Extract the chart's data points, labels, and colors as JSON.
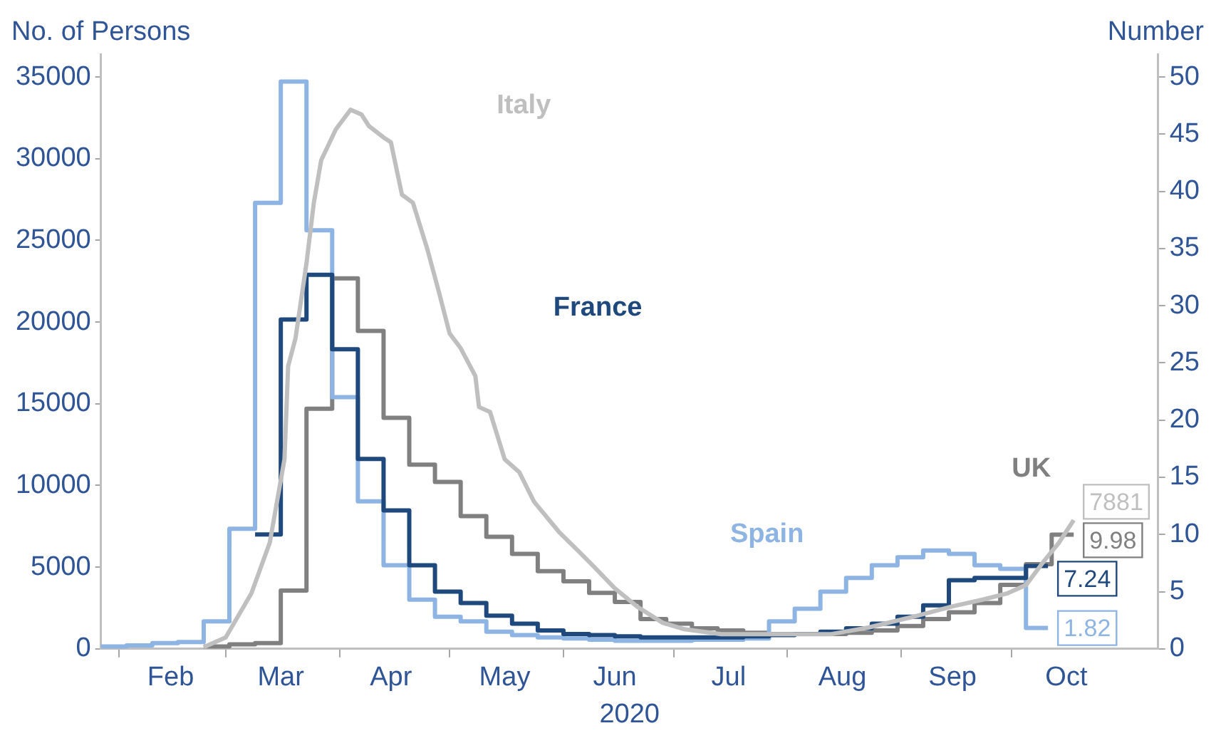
{
  "chart_data": {
    "type": "line",
    "xlabel": "2020",
    "ylabel": "No. of Persons",
    "y2label": "Number",
    "xlim": [
      "2020-01-27",
      "2020-11-10"
    ],
    "xticks": [
      {
        "value": "2020-02-01",
        "label": null
      },
      {
        "value": "2020-02-15",
        "label": "Feb"
      },
      {
        "value": "2020-03-01",
        "label": null
      },
      {
        "value": "2020-03-16",
        "label": "Mar"
      },
      {
        "value": "2020-04-01",
        "label": null
      },
      {
        "value": "2020-04-15",
        "label": "Apr"
      },
      {
        "value": "2020-05-01",
        "label": null
      },
      {
        "value": "2020-05-16",
        "label": "May"
      },
      {
        "value": "2020-06-01",
        "label": null
      },
      {
        "value": "2020-06-15",
        "label": "Jun"
      },
      {
        "value": "2020-07-01",
        "label": null
      },
      {
        "value": "2020-07-16",
        "label": "Jul"
      },
      {
        "value": "2020-08-01",
        "label": null
      },
      {
        "value": "2020-08-16",
        "label": "Aug"
      },
      {
        "value": "2020-09-01",
        "label": null
      },
      {
        "value": "2020-09-15",
        "label": "Sep"
      },
      {
        "value": "2020-10-01",
        "label": null
      },
      {
        "value": "2020-10-16",
        "label": "Oct"
      }
    ],
    "ylim": [
      0,
      36400
    ],
    "yticks": [
      0,
      5000,
      10000,
      15000,
      20000,
      25000,
      30000,
      35000
    ],
    "y2lim": [
      0,
      52
    ],
    "y2ticks": [
      0,
      5,
      10,
      15,
      20,
      25,
      30,
      35,
      40,
      45,
      50
    ],
    "grid": false,
    "legend": false,
    "marker": "none",
    "series": [
      {
        "name": "Italy",
        "type": "line",
        "color": "#bfbfbf",
        "x": [
          "2020-02-24",
          "2020-03-01",
          "2020-03-08",
          "2020-03-13",
          "2020-03-17",
          "2020-03-18",
          "2020-03-20",
          "2020-03-23",
          "2020-03-25",
          "2020-03-27",
          "2020-03-31",
          "2020-04-04",
          "2020-04-07",
          "2020-04-09",
          "2020-04-13",
          "2020-04-15",
          "2020-04-18",
          "2020-04-21",
          "2020-04-25",
          "2020-04-28",
          "2020-05-01",
          "2020-05-04",
          "2020-05-08",
          "2020-05-09",
          "2020-05-12",
          "2020-05-16",
          "2020-05-20",
          "2020-05-24",
          "2020-05-31",
          "2020-06-05",
          "2020-06-09",
          "2020-06-15",
          "2020-06-21",
          "2020-06-28",
          "2020-07-04",
          "2020-07-14",
          "2020-07-29",
          "2020-08-13",
          "2020-08-23",
          "2020-09-05",
          "2020-09-15",
          "2020-09-23",
          "2020-09-30",
          "2020-10-05",
          "2020-10-10",
          "2020-10-14",
          "2020-10-18"
        ],
        "values": [
          100,
          700,
          3400,
          6500,
          11600,
          17300,
          19000,
          23600,
          27300,
          29900,
          31800,
          33000,
          32700,
          32000,
          31300,
          31000,
          27800,
          27300,
          24400,
          21900,
          19300,
          18400,
          16700,
          14800,
          14500,
          11600,
          10800,
          9000,
          7100,
          6000,
          5100,
          3700,
          2600,
          1600,
          1200,
          900,
          900,
          900,
          1300,
          2000,
          2600,
          3000,
          3400,
          3900,
          5400,
          6500,
          7881
        ],
        "value_labels": [
          null,
          null,
          null,
          null,
          null,
          null,
          null,
          null,
          null,
          null,
          null,
          null,
          null,
          null,
          null,
          null,
          null,
          null,
          null,
          null,
          null,
          null,
          null,
          null,
          null,
          null,
          null,
          null,
          null,
          null,
          null,
          null,
          null,
          null,
          null,
          null,
          null,
          null,
          null,
          null,
          null,
          null,
          null,
          null,
          null,
          null,
          "7881"
        ]
      },
      {
        "name": "France",
        "type": "step",
        "axis": "y2",
        "color": "#1f497d",
        "x": [
          "2020-03-09",
          "2020-03-16",
          "2020-03-23",
          "2020-03-30",
          "2020-04-06",
          "2020-04-13",
          "2020-04-20",
          "2020-04-27",
          "2020-05-04",
          "2020-05-11",
          "2020-05-18",
          "2020-05-25",
          "2020-06-01",
          "2020-06-08",
          "2020-06-15",
          "2020-06-22",
          "2020-06-29",
          "2020-07-06",
          "2020-07-13",
          "2020-07-20",
          "2020-07-27",
          "2020-08-03",
          "2020-08-10",
          "2020-08-17",
          "2020-08-24",
          "2020-08-31",
          "2020-09-07",
          "2020-09-14",
          "2020-09-21",
          "2020-09-28",
          "2020-10-05",
          "2020-10-11"
        ],
        "values": [
          10.0,
          28.8,
          32.7,
          26.2,
          16.6,
          12.1,
          7.3,
          5.0,
          4.0,
          2.9,
          2.2,
          1.6,
          1.3,
          1.2,
          1.1,
          1.0,
          1.0,
          1.0,
          1.0,
          1.1,
          1.2,
          1.3,
          1.5,
          1.8,
          2.2,
          2.8,
          3.8,
          6.0,
          6.2,
          6.2,
          7.24,
          7.24
        ],
        "value_labels": [
          null,
          null,
          null,
          null,
          null,
          null,
          null,
          null,
          null,
          null,
          null,
          null,
          null,
          null,
          null,
          null,
          null,
          null,
          null,
          null,
          null,
          null,
          null,
          null,
          null,
          null,
          null,
          null,
          null,
          null,
          null,
          "7.24"
        ]
      },
      {
        "name": "Spain",
        "type": "step",
        "axis": "y2",
        "color": "#8db4e2",
        "x": [
          "2020-01-27",
          "2020-02-03",
          "2020-02-10",
          "2020-02-17",
          "2020-02-24",
          "2020-03-02",
          "2020-03-09",
          "2020-03-16",
          "2020-03-23",
          "2020-03-30",
          "2020-04-06",
          "2020-04-13",
          "2020-04-20",
          "2020-04-27",
          "2020-05-04",
          "2020-05-11",
          "2020-05-18",
          "2020-05-25",
          "2020-06-01",
          "2020-06-08",
          "2020-06-15",
          "2020-06-22",
          "2020-06-29",
          "2020-07-06",
          "2020-07-13",
          "2020-07-20",
          "2020-07-27",
          "2020-08-03",
          "2020-08-10",
          "2020-08-17",
          "2020-08-24",
          "2020-08-31",
          "2020-09-07",
          "2020-09-14",
          "2020-09-21",
          "2020-09-28",
          "2020-10-05",
          "2020-10-11"
        ],
        "values": [
          0.2,
          0.3,
          0.5,
          0.6,
          2.4,
          10.5,
          39,
          49.6,
          36.6,
          22,
          12.9,
          7.3,
          4.3,
          2.8,
          2.4,
          1.5,
          1.2,
          1.0,
          0.9,
          0.8,
          0.7,
          0.7,
          0.7,
          0.8,
          0.8,
          0.9,
          2.4,
          3.5,
          5.0,
          6.2,
          7.3,
          8.0,
          8.6,
          8.3,
          7.3,
          7.0,
          1.82,
          1.82
        ],
        "value_labels": [
          null,
          null,
          null,
          null,
          null,
          null,
          null,
          null,
          null,
          null,
          null,
          null,
          null,
          null,
          null,
          null,
          null,
          null,
          null,
          null,
          null,
          null,
          null,
          null,
          null,
          null,
          null,
          null,
          null,
          null,
          null,
          null,
          null,
          null,
          null,
          null,
          null,
          "1.82"
        ]
      },
      {
        "name": "UK",
        "type": "step",
        "axis": "y2",
        "color": "#808080",
        "x": [
          "2020-02-24",
          "2020-03-02",
          "2020-03-09",
          "2020-03-16",
          "2020-03-23",
          "2020-03-30",
          "2020-04-06",
          "2020-04-13",
          "2020-04-20",
          "2020-04-27",
          "2020-05-04",
          "2020-05-11",
          "2020-05-18",
          "2020-05-25",
          "2020-06-01",
          "2020-06-08",
          "2020-06-15",
          "2020-06-22",
          "2020-06-29",
          "2020-07-06",
          "2020-07-13",
          "2020-07-20",
          "2020-07-27",
          "2020-08-03",
          "2020-08-10",
          "2020-08-17",
          "2020-08-24",
          "2020-08-31",
          "2020-09-07",
          "2020-09-14",
          "2020-09-21",
          "2020-09-28",
          "2020-10-05",
          "2020-10-12",
          "2020-10-18"
        ],
        "values": [
          0.2,
          0.4,
          0.5,
          5.1,
          21.0,
          32.4,
          27.8,
          20.2,
          16.1,
          14.6,
          11.6,
          9.8,
          8.3,
          6.8,
          5.9,
          4.9,
          4.1,
          2.6,
          2.2,
          1.8,
          1.6,
          1.4,
          1.3,
          1.3,
          1.3,
          1.4,
          1.6,
          2.0,
          2.6,
          3.2,
          4.0,
          5.6,
          7.4,
          9.98,
          9.98
        ],
        "value_labels": [
          null,
          null,
          null,
          null,
          null,
          null,
          null,
          null,
          null,
          null,
          null,
          null,
          null,
          null,
          null,
          null,
          null,
          null,
          null,
          null,
          null,
          null,
          null,
          null,
          null,
          null,
          null,
          null,
          null,
          null,
          null,
          null,
          null,
          null,
          "9.98"
        ]
      }
    ]
  }
}
